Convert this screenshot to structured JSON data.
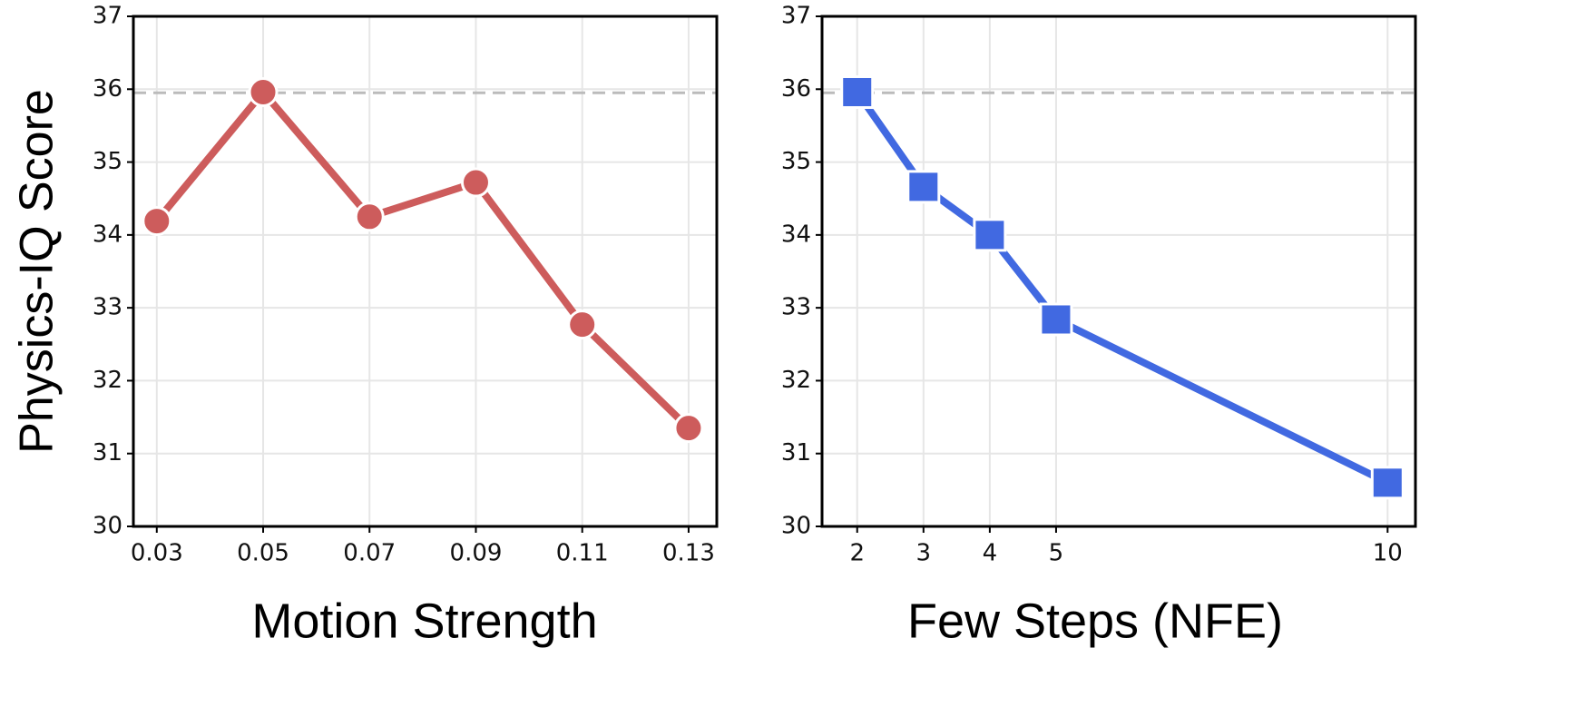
{
  "chart_data": [
    {
      "type": "line",
      "xlabel": "Motion Strength",
      "ylabel": "Physics-IQ Score",
      "x": [
        0.03,
        0.05,
        0.07,
        0.09,
        0.11,
        0.13
      ],
      "x_tick_labels": [
        "0.03",
        "0.05",
        "0.07",
        "0.09",
        "0.11",
        "0.13"
      ],
      "series": [
        {
          "values": [
            34.19,
            35.96,
            34.25,
            34.72,
            32.77,
            31.35
          ],
          "color": "#cd5c5c",
          "marker": "circle"
        }
      ],
      "reference_line": {
        "y": 35.95,
        "style": "dashed",
        "color": "#bbbbbb"
      },
      "xlim": [
        0.0256,
        0.1353
      ],
      "ylim": [
        30,
        37
      ],
      "y_ticks": [
        30,
        31,
        32,
        33,
        34,
        35,
        36,
        37
      ],
      "grid": true
    },
    {
      "type": "line",
      "xlabel": "Few Steps (NFE)",
      "ylabel": "",
      "x": [
        2,
        3,
        4,
        5,
        10
      ],
      "x_tick_labels": [
        "2",
        "3",
        "4",
        "5",
        "10"
      ],
      "series": [
        {
          "values": [
            35.96,
            34.66,
            34.0,
            32.84,
            30.6
          ],
          "color": "#4169e1",
          "marker": "square"
        }
      ],
      "reference_line": {
        "y": 35.95,
        "style": "dashed",
        "color": "#bbbbbb"
      },
      "xlim": [
        1.47,
        10.42
      ],
      "ylim": [
        30,
        37
      ],
      "y_ticks": [
        30,
        31,
        32,
        33,
        34,
        35,
        36,
        37
      ],
      "grid": true
    }
  ]
}
